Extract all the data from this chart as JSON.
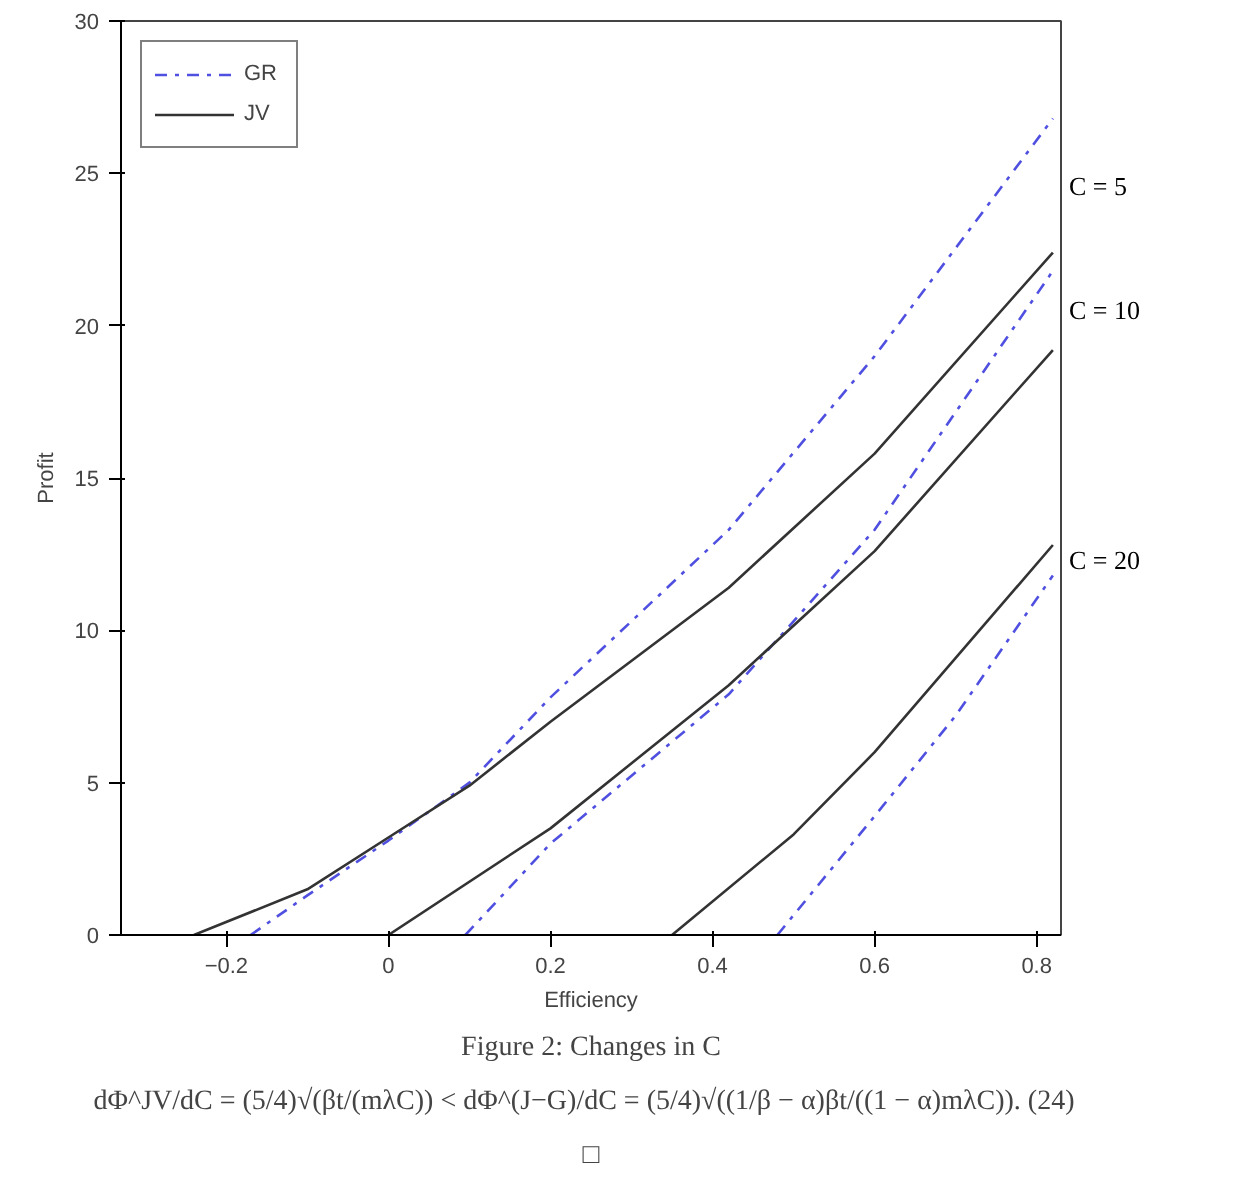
{
  "chart_data": {
    "type": "line",
    "xlabel": "Efficiency",
    "ylabel": "Profit",
    "xlim": [
      -0.33,
      0.83
    ],
    "ylim": [
      0,
      30
    ],
    "xticks": [
      -0.2,
      0,
      0.2,
      0.4,
      0.6,
      0.8
    ],
    "yticks": [
      0,
      5,
      10,
      15,
      20,
      25,
      30
    ],
    "grid": false,
    "legend": "top left",
    "marker": "none",
    "series": [
      {
        "name": "GR",
        "color": "#5050e0",
        "line_style": "dashdot",
        "x": [
          -0.17,
          -0.1,
          0,
          0.1,
          0.2,
          0.42,
          0.6,
          0.82
        ],
        "values": [
          0,
          1.3,
          3.1,
          5.0,
          7.8,
          13.3,
          19.0,
          26.8
        ]
      },
      {
        "name": "JV",
        "color": "#333333",
        "line_style": "solid",
        "x": [
          -0.24,
          -0.1,
          0,
          0.1,
          0.2,
          0.42,
          0.6,
          0.82
        ],
        "values": [
          0,
          1.5,
          3.2,
          4.9,
          7.0,
          11.4,
          15.8,
          22.4
        ]
      },
      {
        "color": "#5050e0",
        "line_style": "dashdot",
        "x": [
          0.095,
          0.2,
          0.42,
          0.6,
          0.82
        ],
        "values": [
          0,
          3.0,
          7.9,
          13.3,
          21.8
        ]
      },
      {
        "color": "#333333",
        "line_style": "solid",
        "x": [
          0,
          0.2,
          0.42,
          0.6,
          0.82
        ],
        "values": [
          0,
          3.5,
          8.2,
          12.6,
          19.2
        ]
      },
      {
        "color": "#5050e0",
        "line_style": "dashdot",
        "x": [
          0.48,
          0.6,
          0.7,
          0.82
        ],
        "values": [
          0,
          3.9,
          7.2,
          11.8
        ]
      },
      {
        "color": "#333333",
        "line_style": "solid",
        "x": [
          0.35,
          0.5,
          0.6,
          0.82
        ],
        "values": [
          0,
          3.3,
          6.0,
          12.8
        ]
      }
    ],
    "annotations": [
      "C = 5",
      "C = 10",
      "C = 20",
      "Figure 2: Changes in C",
      "dΦ^JV/dC = (5/4)√(βt/(mλC)) < dΦ^(J−G)/dC = (5/4)√((1/β − α)βt/((1 − α)mλC)).   (24)",
      "□"
    ]
  }
}
